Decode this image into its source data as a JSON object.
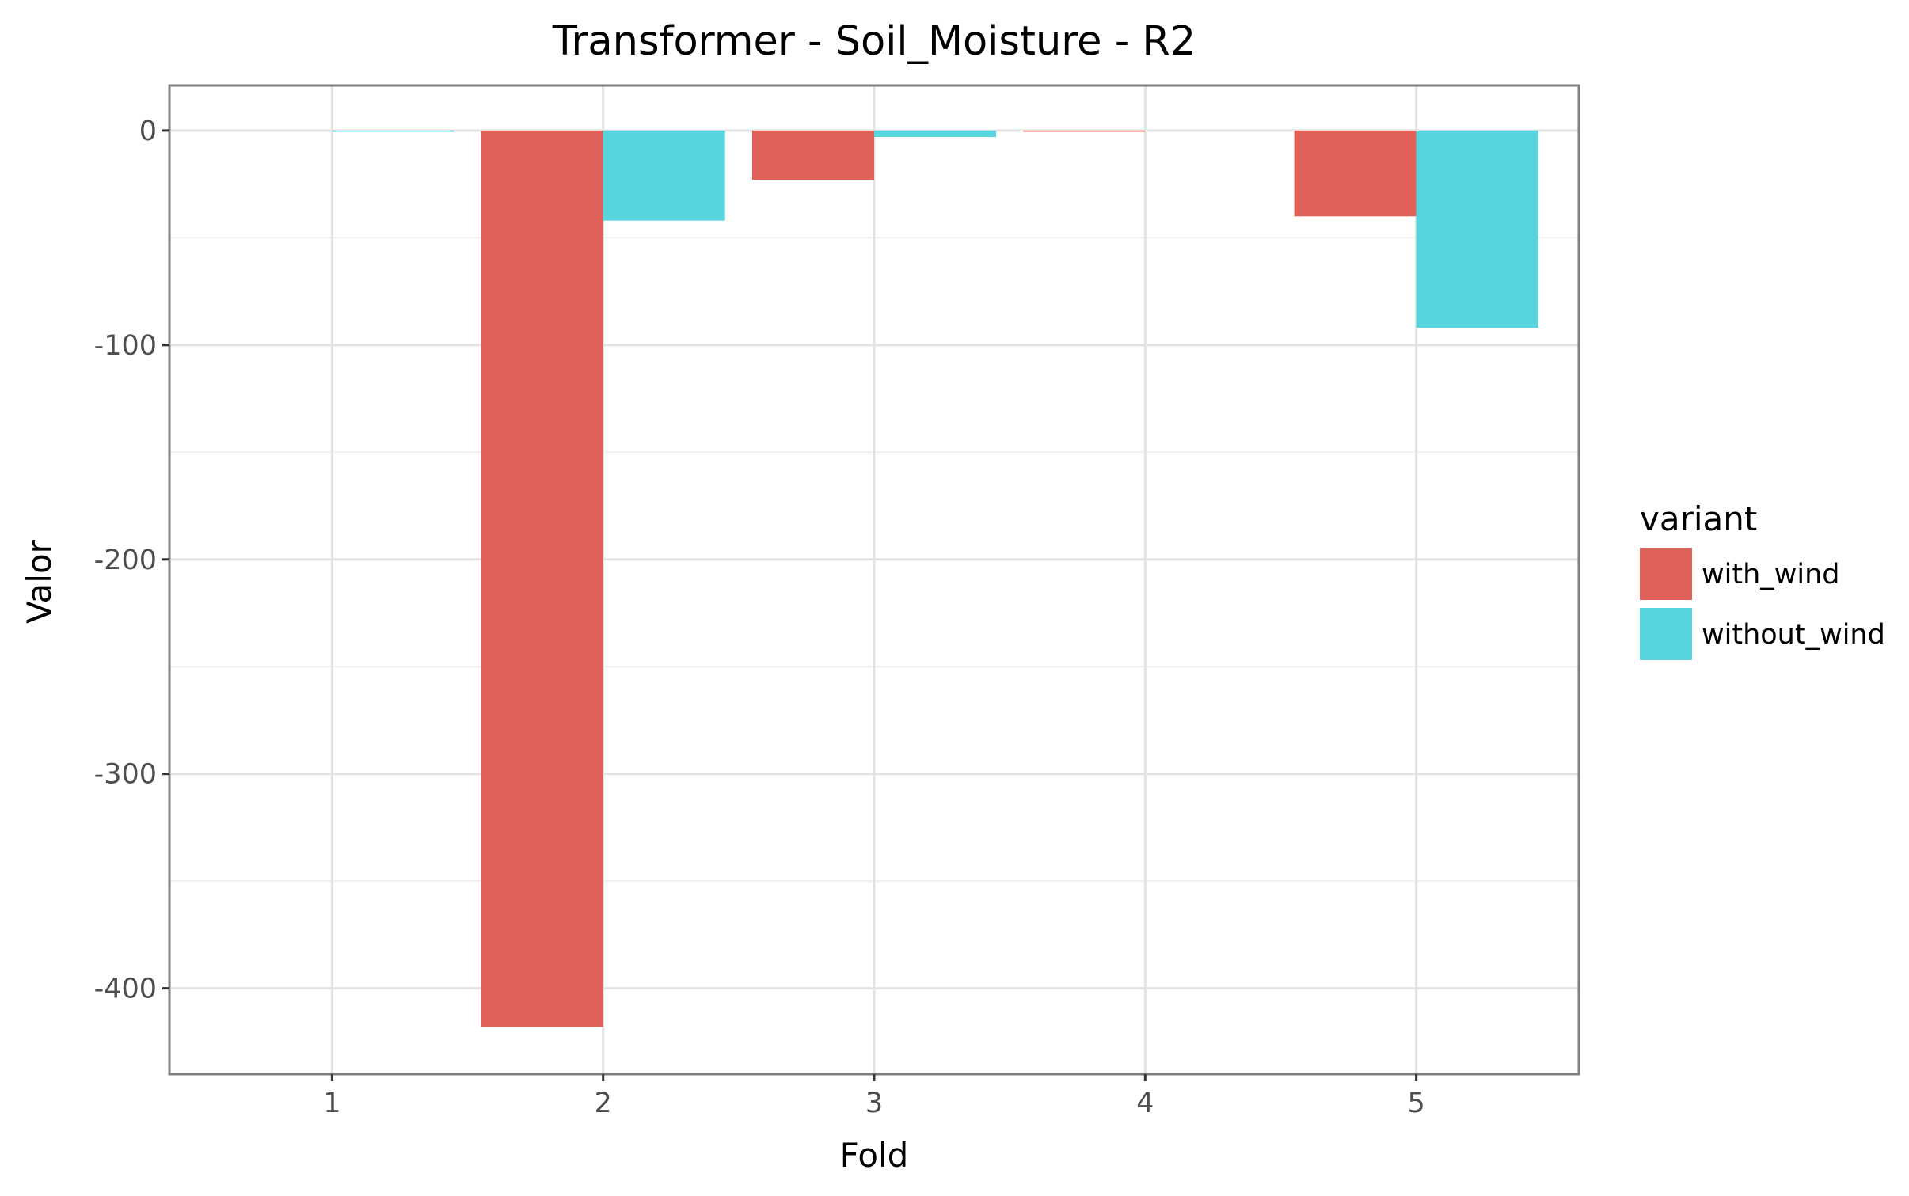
{
  "chart_data": {
    "type": "bar",
    "title": "Transformer - Soil_Moisture - R2",
    "xlabel": "Fold",
    "ylabel": "Valor",
    "categories": [
      "1",
      "2",
      "3",
      "4",
      "5"
    ],
    "series": [
      {
        "name": "with_wind",
        "color": "#e0605a",
        "values": [
          0,
          -418,
          -23,
          -0.5,
          -40
        ]
      },
      {
        "name": "without_wind",
        "color": "#57d4dc",
        "values": [
          -0.5,
          -42,
          -3,
          0,
          -92
        ]
      }
    ],
    "yticks": [
      0,
      -100,
      -200,
      -300,
      -400
    ],
    "ytick_labels": [
      "0",
      "-100",
      "-200",
      "-300",
      "-400"
    ],
    "ylim": [
      -440,
      21
    ],
    "grid": true,
    "legend": {
      "title": "variant",
      "position": "right"
    }
  }
}
